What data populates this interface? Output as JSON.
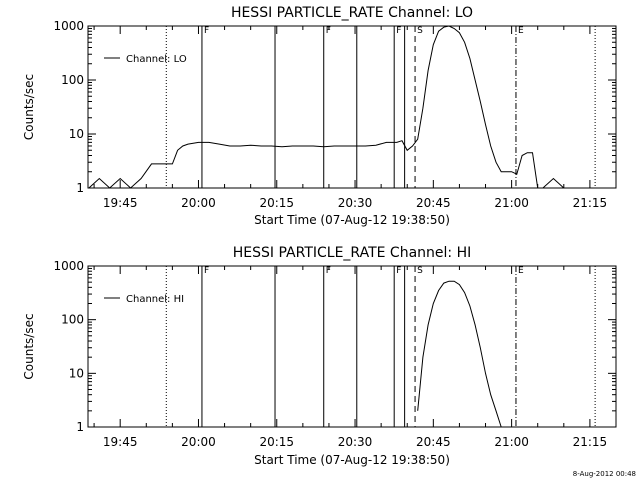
{
  "chart_data": [
    {
      "type": "line",
      "title": "HESSI PARTICLE_RATE Channel: LO",
      "xlabel": "Start Time (07-Aug-12 19:38:50)",
      "ylabel": "Counts/sec",
      "y_scale": "log",
      "ylim": [
        1,
        1000
      ],
      "xlim": [
        "19:38:50",
        "21:20:00"
      ],
      "x_ticks": [
        "19:45",
        "20:00",
        "20:15",
        "20:30",
        "20:45",
        "21:00",
        "21:15"
      ],
      "y_ticks": [
        "1",
        "10",
        "100",
        "1000"
      ],
      "legend": {
        "placement": "top-left",
        "entries": [
          "Channel: LO"
        ]
      },
      "series": [
        {
          "name": "Channel: LO",
          "x": [
            "19:39",
            "19:41",
            "19:43",
            "19:45",
            "19:47",
            "19:49",
            "19:51",
            "19:53",
            "19:55",
            "19:56",
            "19:57",
            "19:58",
            "20:00",
            "20:02",
            "20:04",
            "20:06",
            "20:08",
            "20:10",
            "20:12",
            "20:14",
            "20:16",
            "20:18",
            "20:20",
            "20:22",
            "20:24",
            "20:26",
            "20:28",
            "20:30",
            "20:32",
            "20:34",
            "20:36",
            "20:37",
            "20:38",
            "20:39",
            "20:40",
            "20:41",
            "20:42",
            "20:43",
            "20:44",
            "20:45",
            "20:46",
            "20:47",
            "20:48",
            "20:49",
            "20:50",
            "20:51",
            "20:52",
            "20:53",
            "20:54",
            "20:55",
            "20:56",
            "20:57",
            "20:58",
            "20:59",
            "21:00",
            "21:01",
            "21:02",
            "21:03",
            "21:04",
            "21:05",
            "21:06",
            "21:08",
            "21:10",
            "21:12",
            "21:14",
            "21:16",
            "21:18",
            "21:20"
          ],
          "values": [
            1,
            1.5,
            1,
            1.5,
            1,
            1.5,
            2.8,
            2.8,
            2.8,
            5,
            6,
            6.5,
            7,
            7,
            6.5,
            6,
            6,
            6.2,
            6,
            6,
            5.8,
            6,
            6,
            6,
            5.8,
            6,
            6,
            6,
            6,
            6.2,
            7,
            7,
            7,
            7.5,
            5,
            6,
            8,
            30,
            150,
            450,
            800,
            950,
            1000,
            900,
            750,
            500,
            250,
            100,
            40,
            15,
            6,
            3,
            2,
            2,
            2,
            1.8,
            4,
            4.5,
            4.5,
            1,
            1,
            1.5,
            1,
            1,
            1,
            1,
            1,
            1
          ]
        }
      ],
      "flags": [
        "F",
        "F",
        "F",
        "S",
        "E"
      ]
    },
    {
      "type": "line",
      "title": "HESSI PARTICLE_RATE Channel: HI",
      "xlabel": "Start Time (07-Aug-12 19:38:50)",
      "ylabel": "Counts/sec",
      "y_scale": "log",
      "ylim": [
        1,
        1000
      ],
      "xlim": [
        "19:38:50",
        "21:20:00"
      ],
      "x_ticks": [
        "19:45",
        "20:00",
        "20:15",
        "20:30",
        "20:45",
        "21:00",
        "21:15"
      ],
      "y_ticks": [
        "1",
        "10",
        "100",
        "1000"
      ],
      "legend": {
        "placement": "top-left",
        "entries": [
          "Channel: HI"
        ]
      },
      "series": [
        {
          "name": "Channel: HI",
          "x": [
            "20:42",
            "20:43",
            "20:44",
            "20:45",
            "20:46",
            "20:47",
            "20:48",
            "20:49",
            "20:50",
            "20:51",
            "20:52",
            "20:53",
            "20:54",
            "20:55",
            "20:56",
            "20:57",
            "20:58"
          ],
          "values": [
            2,
            20,
            80,
            200,
            350,
            480,
            520,
            520,
            450,
            320,
            180,
            80,
            30,
            10,
            4,
            2,
            1
          ]
        }
      ],
      "flags": [
        "F",
        "F",
        "F",
        "S",
        "E"
      ]
    }
  ],
  "timestamp": "8-Aug-2012 00:48"
}
